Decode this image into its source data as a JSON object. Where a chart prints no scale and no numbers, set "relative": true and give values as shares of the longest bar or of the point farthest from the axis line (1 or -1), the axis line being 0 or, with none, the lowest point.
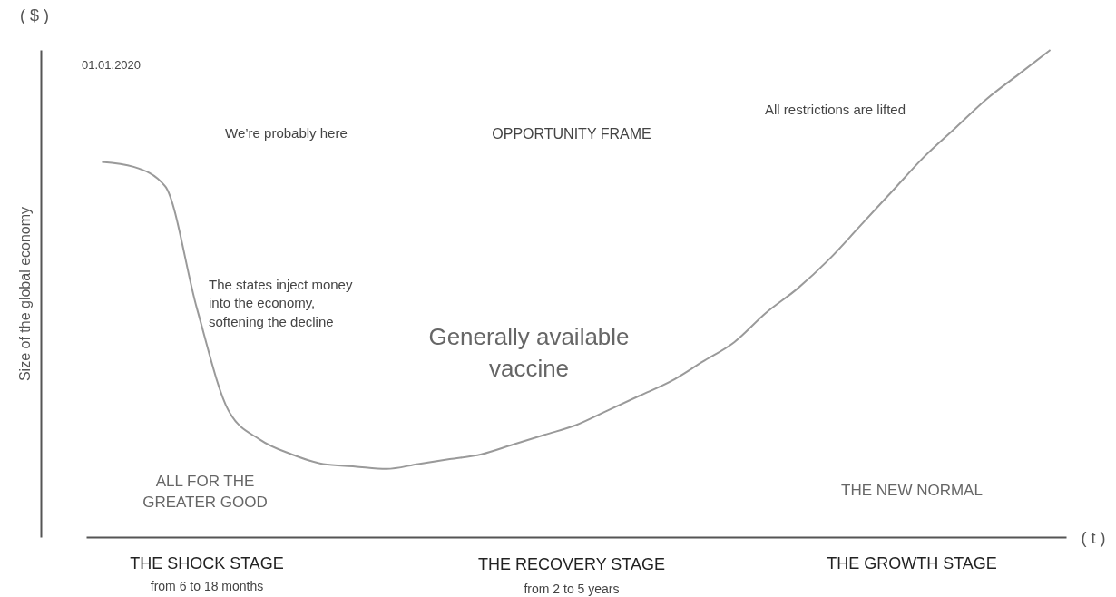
{
  "chart_data": {
    "type": "line",
    "relative": true,
    "ylabel": "Size of the global economy",
    "categories": [
      null,
      null,
      null,
      null,
      null,
      null,
      null,
      null,
      null,
      null,
      null,
      null,
      null,
      null,
      null,
      null,
      null,
      null,
      null,
      null,
      null,
      null,
      null,
      null,
      null,
      null,
      null,
      null,
      null,
      null,
      null
    ],
    "series": [
      {
        "color": "#9a9a9a",
        "values": [
          0.77,
          0.76,
          0.72,
          0.47,
          0.26,
          0.2,
          0.17,
          0.15,
          0.145,
          0.14,
          0.15,
          0.16,
          0.17,
          0.19,
          0.21,
          0.23,
          0.26,
          0.29,
          0.32,
          0.36,
          0.4,
          0.46,
          0.51,
          0.57,
          0.64,
          0.71,
          0.78,
          0.84,
          0.9,
          0.95,
          1.0
        ]
      }
    ],
    "marker": "none",
    "grid": false,
    "annotations": [
      "( $ )",
      "( t )",
      "01.01.2020",
      "We’re probably here",
      "The states inject money into the economy, softening the decline",
      "Generally available vaccine",
      "OPPORTUNITY FRAME",
      "All restrictions are lifted",
      "ALL FOR THE GREATER GOOD",
      "THE NEW NORMAL",
      "THE SHOCK STAGE",
      "from 6 to 18 months",
      "THE RECOVERY STAGE",
      "from 2 to 5 years",
      "THE GROWTH STAGE"
    ]
  }
}
